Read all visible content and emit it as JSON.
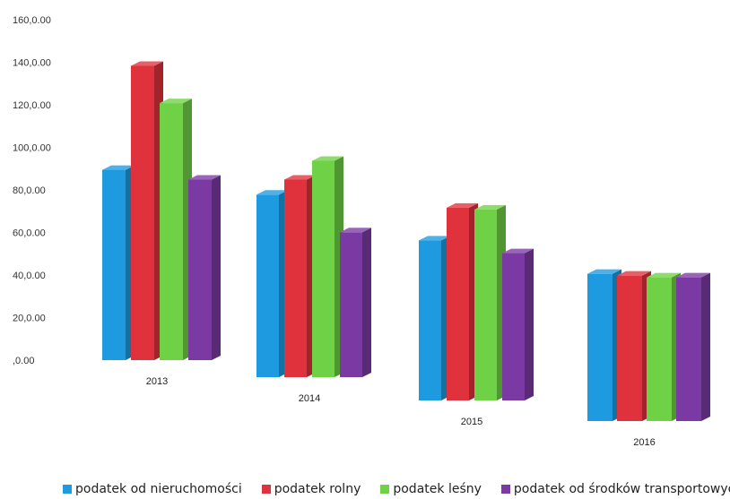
{
  "chart_data": {
    "type": "bar",
    "three_d": true,
    "categories": [
      "2013",
      "2014",
      "2015",
      "2016"
    ],
    "y_ticks": [
      ",0.00",
      "20,0.00",
      "40,0.00",
      "60,0.00",
      "80,0.00",
      "100,0.00",
      "120,0.00",
      "140,0.00",
      "160,0.00"
    ],
    "ylim": [
      0,
      160
    ],
    "grid": false,
    "legend_position": "bottom",
    "series": [
      {
        "name": "podatek od nieruchomości",
        "color": "#1e9be0",
        "values": [
          97,
          97,
          88,
          83
        ]
      },
      {
        "name": "podatek rolny",
        "color": "#e0323c",
        "values": [
          150,
          105,
          106,
          82
        ]
      },
      {
        "name": "podatek leśny",
        "color": "#6fd145",
        "values": [
          131,
          115,
          105,
          81
        ]
      },
      {
        "name": "podatek od środków transportowych",
        "color": "#7b3aa3",
        "values": [
          92,
          77,
          81,
          81
        ]
      }
    ]
  }
}
